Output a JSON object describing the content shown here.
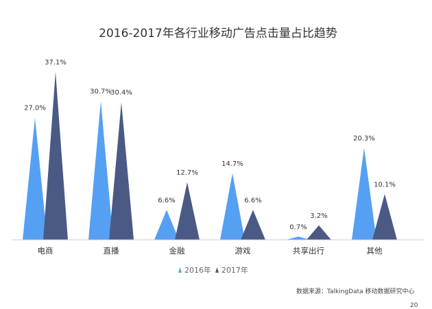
{
  "chart_data": {
    "type": "bar",
    "title": "2016-2017年各行业移动广告点击量占比趋势",
    "categories": [
      "电商",
      "直播",
      "金融",
      "游戏",
      "共享出行",
      "其他"
    ],
    "series": [
      {
        "name": "2016年",
        "color": "#56a0f3",
        "values": [
          27.0,
          30.7,
          6.6,
          14.7,
          0.7,
          20.3
        ],
        "labels": [
          "27.0%",
          "30.7%",
          "6.6%",
          "14.7%",
          "0.7%",
          "20.3%"
        ]
      },
      {
        "name": "2017年",
        "color": "#4b5a85",
        "values": [
          37.1,
          30.4,
          12.7,
          6.6,
          3.2,
          10.1
        ],
        "labels": [
          "37.1%",
          "30.4%",
          "12.7%",
          "6.6%",
          "3.2%",
          "10.1%"
        ]
      }
    ],
    "ylim": [
      0,
      40
    ],
    "legend_position": "bottom",
    "grid": false,
    "xlabel": "",
    "ylabel": ""
  },
  "source_note": "数据来源：TalkingData 移动数据研究中心",
  "page_number": "20"
}
